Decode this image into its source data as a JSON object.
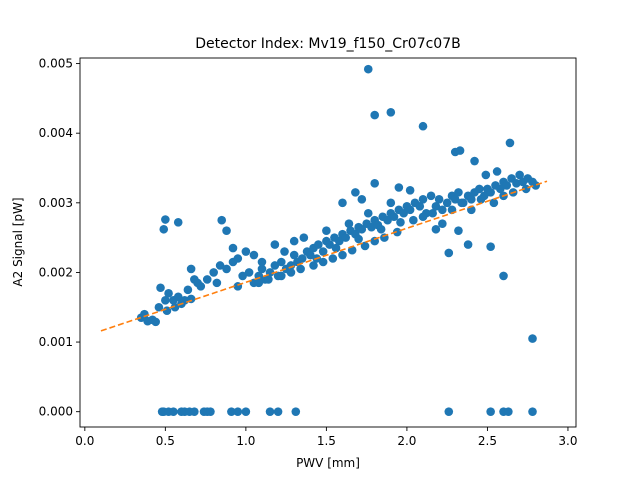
{
  "chart_data": {
    "type": "scatter",
    "title": "Detector Index: Mv19_f150_Cr07c07B",
    "xlabel": "PWV [mm]",
    "ylabel": "A2 Signal [pW]",
    "xlim": [
      -0.03,
      3.05
    ],
    "ylim": [
      -0.00022,
      0.00508
    ],
    "xticks": [
      0.0,
      0.5,
      1.0,
      1.5,
      2.0,
      2.5,
      3.0
    ],
    "xtick_labels": [
      "0.0",
      "0.5",
      "1.0",
      "1.5",
      "2.0",
      "2.5",
      "3.0"
    ],
    "yticks": [
      0.0,
      0.001,
      0.002,
      0.003,
      0.004,
      0.005
    ],
    "ytick_labels": [
      "0.000",
      "0.001",
      "0.002",
      "0.003",
      "0.004",
      "0.005"
    ],
    "colors": {
      "points": "#1f77b4",
      "fit": "#ff7f0e"
    },
    "fit_line": {
      "style": "dashed",
      "x": [
        0.1,
        2.87
      ],
      "y": [
        0.00116,
        0.00331
      ]
    },
    "series": [
      {
        "name": "data",
        "x": [
          0.48,
          0.49,
          0.52,
          0.55,
          0.6,
          0.62,
          0.65,
          0.68,
          0.74,
          0.76,
          0.78,
          0.91,
          0.95,
          1.0,
          1.15,
          1.2,
          1.31,
          2.26,
          2.52,
          2.6,
          2.63,
          2.78,
          0.35,
          0.37,
          0.39,
          0.42,
          0.44,
          0.46,
          0.5,
          0.52,
          0.55,
          0.58,
          0.47,
          0.51,
          0.56,
          0.6,
          0.62,
          0.64,
          0.66,
          0.68,
          0.7,
          0.72,
          0.76,
          0.8,
          0.84,
          0.88,
          0.92,
          0.95,
          0.98,
          1.0,
          0.49,
          0.5,
          0.58,
          0.85,
          0.88,
          0.92,
          0.66,
          0.82,
          0.95,
          1.02,
          1.05,
          1.08,
          1.1,
          1.12,
          1.15,
          1.18,
          1.2,
          1.22,
          1.25,
          1.28,
          1.3,
          1.32,
          1.35,
          1.38,
          1.4,
          1.42,
          1.45,
          1.48,
          1.5,
          1.52,
          1.55,
          1.58,
          1.6,
          1.62,
          1.65,
          1.68,
          1.7,
          1.72,
          1.75,
          1.78,
          1.8,
          1.82,
          1.85,
          1.88,
          1.9,
          1.92,
          1.95,
          1.98,
          2.0,
          1.05,
          1.1,
          1.18,
          1.24,
          1.3,
          1.36,
          1.44,
          1.5,
          1.56,
          1.64,
          1.7,
          1.76,
          1.84,
          1.9,
          1.96,
          1.08,
          1.14,
          1.22,
          1.28,
          1.34,
          1.42,
          1.48,
          1.54,
          1.6,
          1.66,
          1.74,
          1.8,
          1.86,
          1.94,
          2.02,
          2.05,
          2.08,
          2.1,
          2.12,
          2.15,
          2.18,
          2.2,
          2.22,
          2.25,
          2.28,
          2.3,
          2.32,
          2.35,
          2.38,
          2.4,
          2.42,
          2.45,
          2.48,
          2.5,
          2.52,
          2.55,
          2.58,
          2.6,
          2.62,
          2.65,
          2.68,
          2.7,
          2.72,
          2.75,
          2.78,
          2.8,
          2.04,
          2.1,
          2.16,
          2.22,
          2.28,
          2.34,
          2.4,
          2.46,
          2.54,
          2.6,
          2.66,
          2.74,
          1.76,
          1.8,
          1.9,
          2.1,
          2.3,
          2.33,
          2.42,
          2.49,
          2.56,
          2.64,
          2.38,
          2.18,
          2.26,
          2.32,
          2.52,
          2.6,
          2.78,
          1.8,
          1.72,
          1.6,
          1.68,
          1.95,
          2.02
        ],
        "y": [
          0.0,
          0.0,
          0.0,
          0.0,
          0.0,
          0.0,
          0.0,
          0.0,
          0.0,
          0.0,
          0.0,
          0.0,
          0.0,
          0.0,
          0.0,
          0.0,
          0.0,
          0.0,
          0.0,
          0.0,
          0.0,
          0.0,
          0.00135,
          0.0014,
          0.0013,
          0.00132,
          0.00129,
          0.0015,
          0.0016,
          0.0017,
          0.0016,
          0.00165,
          0.00178,
          0.00145,
          0.0015,
          0.00155,
          0.0016,
          0.00175,
          0.00162,
          0.0019,
          0.00185,
          0.0018,
          0.0019,
          0.002,
          0.0021,
          0.00205,
          0.00215,
          0.0022,
          0.00195,
          0.0023,
          0.00262,
          0.00276,
          0.00272,
          0.00275,
          0.0026,
          0.00235,
          0.00205,
          0.00185,
          0.0018,
          0.002,
          0.00185,
          0.00195,
          0.00205,
          0.0019,
          0.002,
          0.0021,
          0.00195,
          0.00215,
          0.00205,
          0.0021,
          0.00225,
          0.00215,
          0.0022,
          0.0023,
          0.00225,
          0.00235,
          0.0024,
          0.0023,
          0.00245,
          0.0024,
          0.0025,
          0.00245,
          0.00255,
          0.0025,
          0.0026,
          0.00255,
          0.00265,
          0.00262,
          0.0027,
          0.00265,
          0.00275,
          0.00268,
          0.0028,
          0.00275,
          0.00285,
          0.0028,
          0.0029,
          0.00285,
          0.00295,
          0.00225,
          0.00215,
          0.0024,
          0.0023,
          0.00245,
          0.0025,
          0.0022,
          0.0026,
          0.00235,
          0.0027,
          0.00248,
          0.00285,
          0.00262,
          0.003,
          0.00272,
          0.00185,
          0.0019,
          0.00195,
          0.002,
          0.00205,
          0.0021,
          0.00215,
          0.0022,
          0.00225,
          0.00232,
          0.00238,
          0.00245,
          0.0025,
          0.00258,
          0.0029,
          0.003,
          0.00295,
          0.00305,
          0.00285,
          0.0031,
          0.00295,
          0.00305,
          0.0029,
          0.003,
          0.0031,
          0.00305,
          0.00315,
          0.003,
          0.0031,
          0.00305,
          0.00315,
          0.0032,
          0.0031,
          0.0032,
          0.00315,
          0.00325,
          0.0032,
          0.0033,
          0.00325,
          0.00335,
          0.00328,
          0.0034,
          0.0033,
          0.00335,
          0.0033,
          0.00325,
          0.00275,
          0.0028,
          0.00285,
          0.0027,
          0.0029,
          0.003,
          0.0029,
          0.00305,
          0.003,
          0.0031,
          0.00315,
          0.0032,
          0.00492,
          0.00426,
          0.0043,
          0.0041,
          0.00373,
          0.00375,
          0.0036,
          0.0034,
          0.00345,
          0.00386,
          0.0024,
          0.00262,
          0.00228,
          0.0026,
          0.00237,
          0.00195,
          0.00105,
          0.00328,
          0.00305,
          0.003,
          0.00315,
          0.00322,
          0.00318
        ]
      }
    ]
  }
}
